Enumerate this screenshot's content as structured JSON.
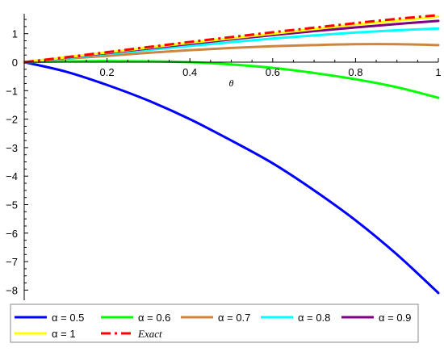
{
  "chart_data": {
    "type": "line",
    "xlabel": "θ",
    "ylabel": "",
    "xlim": [
      0,
      1
    ],
    "ylim": [
      -8.3,
      1.7
    ],
    "x_ticks": [
      0.2,
      0.4,
      0.6,
      0.8,
      1
    ],
    "x_tick_labels": [
      "0.2",
      "0.4",
      "0.6",
      "0.8",
      "1"
    ],
    "y_ticks": [
      1,
      0,
      -1,
      -2,
      -3,
      -4,
      -5,
      -6,
      -7,
      -8
    ],
    "y_tick_labels": [
      "1",
      "0",
      "−1",
      "−2",
      "−3",
      "−4",
      "−5",
      "−6",
      "−7",
      "−8"
    ],
    "grid": false,
    "legend_position": "bottom",
    "x": [
      0,
      0.1,
      0.2,
      0.3,
      0.4,
      0.5,
      0.6,
      0.7,
      0.8,
      0.9,
      1.0
    ],
    "series": [
      {
        "name": "α = 0.5",
        "color": "#0000ff",
        "dash": "solid",
        "values": [
          0,
          -0.33,
          -0.8,
          -1.35,
          -2.0,
          -2.75,
          -3.55,
          -4.5,
          -5.55,
          -6.75,
          -8.1
        ]
      },
      {
        "name": "α = 0.6",
        "color": "#00ff00",
        "dash": "solid",
        "values": [
          0,
          0.03,
          0.04,
          0.03,
          0.0,
          -0.08,
          -0.2,
          -0.38,
          -0.6,
          -0.88,
          -1.25
        ]
      },
      {
        "name": "α = 0.7",
        "color": "#cd853f",
        "dash": "solid",
        "values": [
          0,
          0.12,
          0.22,
          0.33,
          0.42,
          0.5,
          0.56,
          0.6,
          0.63,
          0.63,
          0.6
        ]
      },
      {
        "name": "α = 0.8",
        "color": "#00ffff",
        "dash": "solid",
        "values": [
          0,
          0.14,
          0.29,
          0.43,
          0.57,
          0.7,
          0.83,
          0.94,
          1.04,
          1.12,
          1.18
        ]
      },
      {
        "name": "α = 0.9",
        "color": "#800080",
        "dash": "solid",
        "values": [
          0,
          0.16,
          0.32,
          0.48,
          0.64,
          0.8,
          0.95,
          1.09,
          1.22,
          1.34,
          1.45
        ]
      },
      {
        "name": "α = 1",
        "color": "#ffff00",
        "dash": "solid",
        "values": [
          0,
          0.17,
          0.34,
          0.51,
          0.68,
          0.84,
          1.0,
          1.16,
          1.32,
          1.46,
          1.6
        ]
      },
      {
        "name": "Exact",
        "color": "#ff0000",
        "dash": "dashdot",
        "values": [
          0,
          0.17,
          0.35,
          0.53,
          0.71,
          0.88,
          1.05,
          1.21,
          1.37,
          1.52,
          1.65
        ]
      }
    ]
  }
}
